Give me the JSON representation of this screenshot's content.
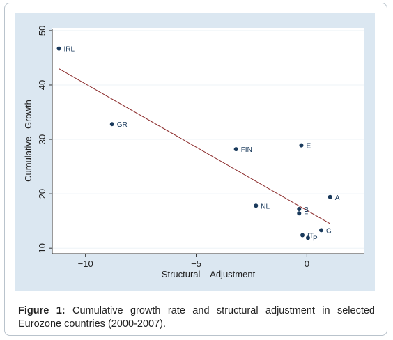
{
  "chart_data": {
    "type": "scatter",
    "title": "",
    "xlabel": "Structural    Adjustment",
    "ylabel": "Cumulative   Growth",
    "xlim": [
      -11.5,
      2.6
    ],
    "ylim": [
      9,
      50.5
    ],
    "xticks": [
      -10,
      -5,
      0
    ],
    "yticks": [
      10,
      20,
      30,
      40,
      50
    ],
    "grid": "horizontal",
    "points": [
      {
        "label": "IRL",
        "x": -11.2,
        "y": 46.7
      },
      {
        "label": "GR",
        "x": -8.8,
        "y": 32.8
      },
      {
        "label": "FIN",
        "x": -3.2,
        "y": 28.2
      },
      {
        "label": "E",
        "x": -0.25,
        "y": 28.9
      },
      {
        "label": "NL",
        "x": -2.3,
        "y": 17.8
      },
      {
        "label": "A",
        "x": 1.05,
        "y": 19.4
      },
      {
        "label": "B",
        "x": -0.35,
        "y": 17.2
      },
      {
        "label": "F",
        "x": -0.35,
        "y": 16.4
      },
      {
        "label": "G",
        "x": 0.65,
        "y": 13.3
      },
      {
        "label": "IT",
        "x": -0.2,
        "y": 12.4
      },
      {
        "label": "P",
        "x": 0.05,
        "y": 11.9
      }
    ],
    "fit_line": {
      "x": [
        -11.2,
        1.05
      ],
      "y": [
        43.0,
        14.5
      ]
    },
    "colors": {
      "points": "#1a3a5c",
      "fit_line": "#8b2a2a",
      "grid": "#eef3f7",
      "panel": "#dbe7f1",
      "plot_area": "#ffffff"
    }
  },
  "caption": {
    "label": "Figure 1:",
    "text": " Cumulative growth rate and structural adjustment in selected Eurozone countries (2000-2007)."
  }
}
